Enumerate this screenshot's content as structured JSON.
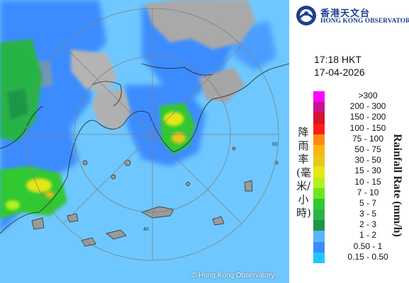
{
  "header": {
    "org_name_zh": "香港天文台",
    "org_name_en": "HONG KONG OBSERVATORY"
  },
  "timestamp": {
    "time": "17:18 HKT",
    "date": "17-04-2026"
  },
  "map": {
    "range_ring_labels": [
      "40",
      "60"
    ],
    "copyright": "© Hong Kong Observatory"
  },
  "legend": {
    "title_zh": "降雨率(毫米/小時)",
    "title_en": "Rainfall Rate (mm/h)",
    "items": [
      {
        "label": ">300",
        "color": "#ff00ff"
      },
      {
        "label": "200 - 300",
        "color": "#c8148c"
      },
      {
        "label": "150 - 200",
        "color": "#d2142d"
      },
      {
        "label": "100 - 150",
        "color": "#ff1e14"
      },
      {
        "label": "75 - 100",
        "color": "#ff8a14"
      },
      {
        "label": "50 - 75",
        "color": "#ffb414"
      },
      {
        "label": "30 - 50",
        "color": "#e6c81e"
      },
      {
        "label": "15 - 30",
        "color": "#e6e614"
      },
      {
        "label": "10 - 15",
        "color": "#b4f01e"
      },
      {
        "label": "7 - 10",
        "color": "#6ee61e"
      },
      {
        "label": "5 - 7",
        "color": "#32c832"
      },
      {
        "label": "3 - 5",
        "color": "#28b446"
      },
      {
        "label": "2 - 3",
        "color": "#1e9646"
      },
      {
        "label": "1 - 2",
        "color": "#5ab4ff"
      },
      {
        "label": "0.50 - 1",
        "color": "#3c8cff"
      },
      {
        "label": "0.15 - 0.50",
        "color": "#1ec8ff"
      }
    ]
  }
}
